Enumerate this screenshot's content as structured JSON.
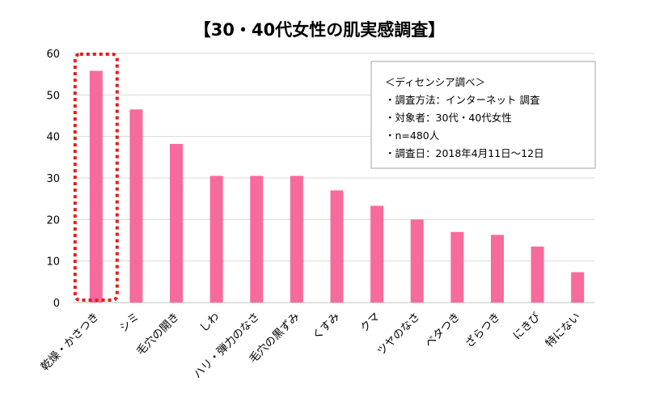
{
  "chart_data": {
    "type": "bar",
    "title": "【30・40代女性の肌実感調査】",
    "categories": [
      "乾燥・かさつき",
      "シミ",
      "毛穴の開き",
      "しわ",
      "ハリ・弾力のなさ",
      "毛穴の黒ずみ",
      "くすみ",
      "クマ",
      "ツヤのなさ",
      "ベタつき",
      "ざらつき",
      "にきび",
      "特にない"
    ],
    "values": [
      55.8,
      46.5,
      38.2,
      30.5,
      30.5,
      30.5,
      27.0,
      23.3,
      20.0,
      17.0,
      16.3,
      13.5,
      7.3
    ],
    "ylim": [
      0,
      60
    ],
    "yticks": [
      0,
      10,
      20,
      30,
      40,
      50,
      60
    ],
    "xlabel": "",
    "ylabel": "",
    "grid": true,
    "legend": "none",
    "highlighted_category": "乾燥・かさつき",
    "colors": {
      "bar": "#f76a9c",
      "highlight": "#e31d1d",
      "grid": "#d9d9d9"
    }
  },
  "notes": {
    "heading": "＜ディセンシア調べ＞",
    "lines": [
      "・調査方法：インターネット 調査",
      "・対象者：30代・40代女性",
      "・n=480人",
      "・調査日：2018年4月11日〜12日"
    ]
  }
}
